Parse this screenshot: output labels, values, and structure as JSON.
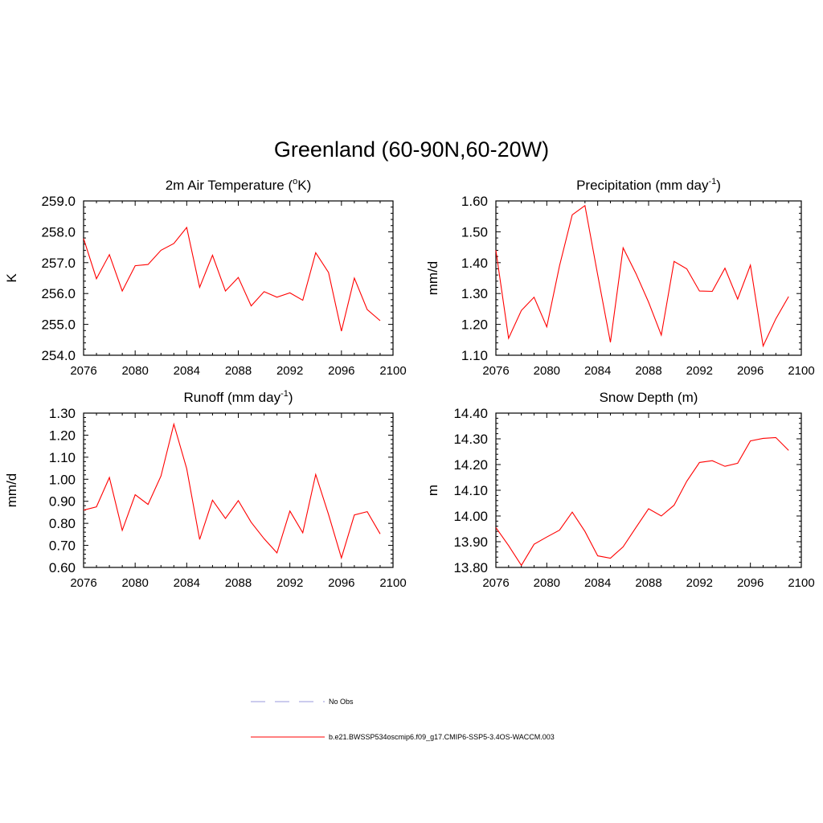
{
  "title": "Greenland (60-90N,60-20W)",
  "legend": [
    {
      "label": "No Obs",
      "color": "#9999dd",
      "dash": "dashed"
    },
    {
      "label": "b.e21.BWSSP534oscmip6.f09_g17.CMIP6-SSP5-3.4OS-WACCM.003",
      "color": "#ff0000",
      "dash": "solid"
    }
  ],
  "chart_data": [
    {
      "type": "line",
      "title": "2m Air Temperature",
      "title_unit": "K",
      "ylabel": "K",
      "xlim": [
        2076,
        2100
      ],
      "ylim": [
        254.0,
        259.0
      ],
      "xticks": [
        2076,
        2080,
        2084,
        2088,
        2092,
        2096,
        2100
      ],
      "yticks": [
        "254.0",
        "255.0",
        "256.0",
        "257.0",
        "258.0",
        "259.0"
      ],
      "series": [
        {
          "color": "#ff0000",
          "x": [
            2076,
            2077,
            2078,
            2079,
            2080,
            2081,
            2082,
            2083,
            2084,
            2085,
            2086,
            2087,
            2088,
            2089,
            2090,
            2091,
            2092,
            2093,
            2094,
            2095,
            2096,
            2097,
            2098,
            2099
          ],
          "y": [
            257.78,
            256.48,
            257.26,
            256.08,
            256.9,
            256.94,
            257.4,
            257.62,
            258.14,
            256.2,
            257.24,
            256.08,
            256.52,
            255.6,
            256.06,
            255.88,
            256.02,
            255.78,
            257.32,
            256.68,
            254.78,
            256.5,
            255.48,
            255.12
          ]
        }
      ]
    },
    {
      "type": "line",
      "title": "Precipitation (mm day",
      "title_sup": "-1",
      "title_end": ")",
      "ylabel": "mm/d",
      "xlim": [
        2076,
        2100
      ],
      "ylim": [
        1.1,
        1.6
      ],
      "xticks": [
        2076,
        2080,
        2084,
        2088,
        2092,
        2096,
        2100
      ],
      "yticks": [
        "1.10",
        "1.20",
        "1.30",
        "1.40",
        "1.50",
        "1.60"
      ],
      "series": [
        {
          "color": "#ff0000",
          "x": [
            2076,
            2077,
            2078,
            2079,
            2080,
            2081,
            2082,
            2083,
            2084,
            2085,
            2086,
            2087,
            2088,
            2089,
            2090,
            2091,
            2092,
            2093,
            2094,
            2095,
            2096,
            2097,
            2098,
            2099
          ],
          "y": [
            1.44,
            1.155,
            1.245,
            1.288,
            1.192,
            1.39,
            1.555,
            1.585,
            1.36,
            1.142,
            1.448,
            1.365,
            1.272,
            1.165,
            1.404,
            1.38,
            1.308,
            1.307,
            1.382,
            1.282,
            1.392,
            1.13,
            1.218,
            1.29
          ]
        }
      ]
    },
    {
      "type": "line",
      "title": "Runoff (mm day",
      "title_sup": "-1",
      "title_end": ")",
      "ylabel": "mm/d",
      "xlim": [
        2076,
        2100
      ],
      "ylim": [
        0.6,
        1.3
      ],
      "xticks": [
        2076,
        2080,
        2084,
        2088,
        2092,
        2096,
        2100
      ],
      "yticks": [
        "0.60",
        "0.70",
        "0.80",
        "0.90",
        "1.00",
        "1.10",
        "1.20",
        "1.30"
      ],
      "series": [
        {
          "color": "#ff0000",
          "x": [
            2076,
            2077,
            2078,
            2079,
            2080,
            2081,
            2082,
            2083,
            2084,
            2085,
            2086,
            2087,
            2088,
            2089,
            2090,
            2091,
            2092,
            2093,
            2094,
            2095,
            2096,
            2097,
            2098,
            2099
          ],
          "y": [
            0.86,
            0.875,
            1.008,
            0.768,
            0.93,
            0.886,
            1.015,
            1.25,
            1.048,
            0.727,
            0.905,
            0.822,
            0.903,
            0.805,
            0.73,
            0.666,
            0.856,
            0.757,
            1.022,
            0.84,
            0.643,
            0.838,
            0.853,
            0.752
          ]
        }
      ]
    },
    {
      "type": "line",
      "title": "Snow Depth (m)",
      "ylabel": "m",
      "xlim": [
        2076,
        2100
      ],
      "ylim": [
        13.8,
        14.4
      ],
      "xticks": [
        2076,
        2080,
        2084,
        2088,
        2092,
        2096,
        2100
      ],
      "yticks": [
        "13.80",
        "13.90",
        "14.00",
        "14.10",
        "14.20",
        "14.30",
        "14.40"
      ],
      "series": [
        {
          "color": "#ff0000",
          "x": [
            2076,
            2077,
            2078,
            2079,
            2080,
            2081,
            2082,
            2083,
            2084,
            2085,
            2086,
            2087,
            2088,
            2089,
            2090,
            2091,
            2092,
            2093,
            2094,
            2095,
            2096,
            2097,
            2098,
            2099
          ],
          "y": [
            13.955,
            13.885,
            13.808,
            13.89,
            13.918,
            13.945,
            14.015,
            13.94,
            13.845,
            13.836,
            13.88,
            13.955,
            14.028,
            14.0,
            14.042,
            14.135,
            14.208,
            14.215,
            14.193,
            14.205,
            14.292,
            14.302,
            14.305,
            14.255
          ]
        }
      ]
    }
  ]
}
